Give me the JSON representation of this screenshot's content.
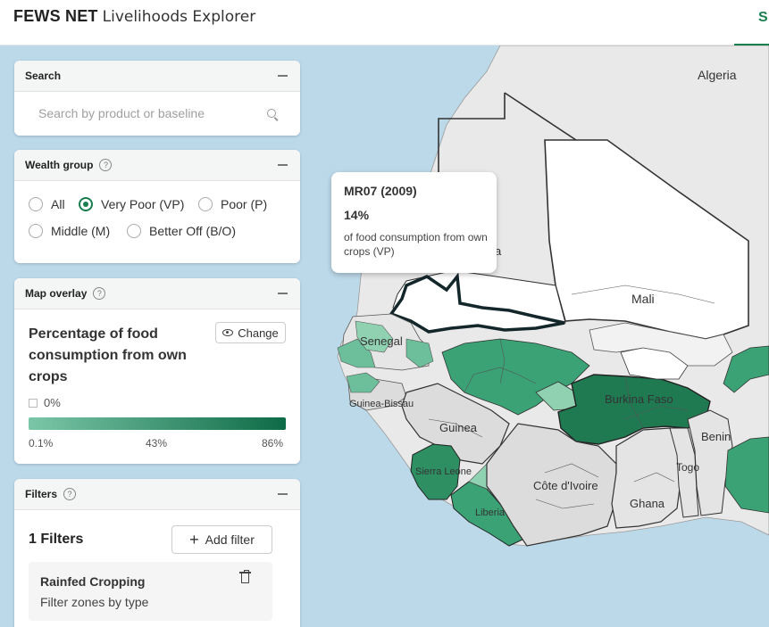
{
  "header": {
    "brand_bold": "FEWS NET",
    "brand_light": "Livelihoods Explorer",
    "tab_partial": "S"
  },
  "search": {
    "title": "Search",
    "placeholder": "Search by product or baseline"
  },
  "wealth_group": {
    "title": "Wealth group",
    "options": [
      "All",
      "Very Poor (VP)",
      "Poor (P)",
      "Middle (M)",
      "Better Off (B/O)"
    ],
    "selected": "Very Poor (VP)"
  },
  "map_overlay": {
    "title": "Map overlay",
    "overlay_name": "Percentage of food consumption from own crops",
    "change_label": "Change",
    "zero_label": "0%",
    "legend": {
      "min": "0.1%",
      "mid": "43%",
      "max": "86%"
    },
    "ramp_colors": [
      "#7bc6a8",
      "#0e6b47"
    ]
  },
  "filters": {
    "title": "Filters",
    "count_label": "1 Filters",
    "add_label": "Add filter",
    "items": [
      {
        "name": "Rainfed Cropping",
        "description": "Filter zones by type"
      }
    ]
  },
  "tooltip": {
    "zone": "MR07 (2009)",
    "value": "14%",
    "description": "of food consumption from own crops (VP)"
  },
  "map": {
    "labels": {
      "algeria": "Algeria",
      "mali": "Mali",
      "senegal": "Senegal",
      "guinea_bissau": "Guinea-Bissau",
      "guinea": "Guinea",
      "burkina_faso": "Burkina Faso",
      "benin": "Benin",
      "togo": "Togo",
      "sierra_leone": "Sierra Leone",
      "cote_divoire": "Côte d'Ivoire",
      "ghana": "Ghana",
      "liberia": "Liberia",
      "mauritania_partial": "a"
    },
    "colors": {
      "water": "#bcd9ea",
      "land": "#e9e9e9",
      "no_data": "#ffffff",
      "grey_zone": "#dcdcdc",
      "border": "#333333",
      "accent": "#1a7f4e"
    }
  }
}
